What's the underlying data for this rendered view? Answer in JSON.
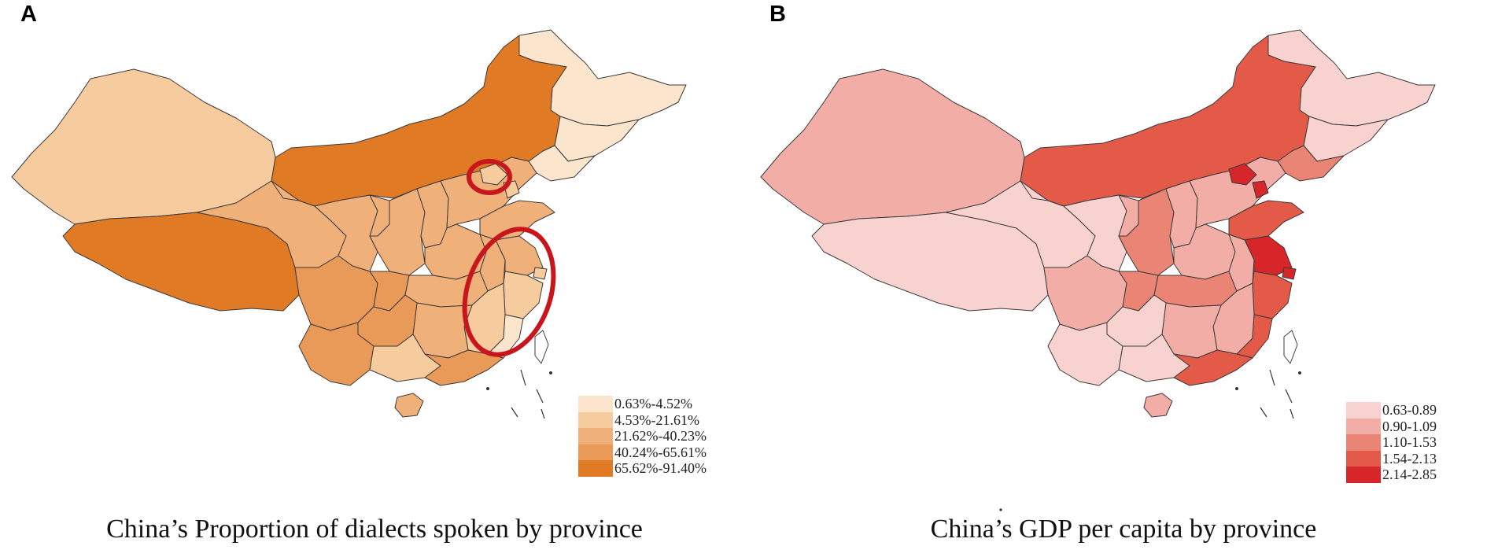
{
  "panels": [
    {
      "letter": "A",
      "caption": "China’s Proportion of dialects spoken by province",
      "legend": [
        {
          "label": "0.63%-4.52%",
          "color": "#fbe5cd"
        },
        {
          "label": "4.53%-21.61%",
          "color": "#f6cb9e"
        },
        {
          "label": "21.62%-40.23%",
          "color": "#f0b07a"
        },
        {
          "label": "40.24%-65.61%",
          "color": "#e99a58"
        },
        {
          "label": "65.62%-91.40%",
          "color": "#e07a24"
        }
      ],
      "highlight_regions": [
        "Beijing",
        "Zhejiang / Fujian coast"
      ]
    },
    {
      "letter": "B",
      "caption": "China’s GDP per capita by province",
      "legend": [
        {
          "label": "0.63-0.89",
          "color": "#f8d2cf"
        },
        {
          "label": "0.90-1.09",
          "color": "#f2aea6"
        },
        {
          "label": "1.10-1.53",
          "color": "#ea8474"
        },
        {
          "label": "1.54-2.13",
          "color": "#e35a48"
        },
        {
          "label": "2.14-2.85",
          "color": "#d7262a"
        }
      ]
    }
  ],
  "map_a_fills": {
    "heilongjiang": "#fbe5cd",
    "jilin": "#fbe5cd",
    "liaoning": "#fbe5cd",
    "inner_mongolia": "#e07a24",
    "xinjiang": "#f6cb9e",
    "tibet": "#e07a24",
    "qinghai": "#f0b07a",
    "gansu": "#f0b07a",
    "ningxia": "#f0b07a",
    "shaanxi": "#f0b07a",
    "shanxi": "#f0b07a",
    "hebei": "#f0b07a",
    "beijing": "#f6cb9e",
    "tianjin": "#f6cb9e",
    "shandong": "#f0b07a",
    "henan": "#f0b07a",
    "sichuan": "#e99a58",
    "chongqing": "#e99a58",
    "hubei": "#f0b07a",
    "anhui": "#f0b07a",
    "jiangsu": "#f0b07a",
    "shanghai": "#f6cb9e",
    "zhejiang": "#f6cb9e",
    "jiangxi": "#f6cb9e",
    "hunan": "#f0b07a",
    "guizhou": "#e99a58",
    "yunnan": "#e99a58",
    "guangxi": "#f6cb9e",
    "guangdong": "#e99a58",
    "fujian": "#fbe5cd",
    "hainan": "#f0b07a",
    "taiwan": "#ffffff"
  },
  "map_b_fills": {
    "heilongjiang": "#f8d2cf",
    "jilin": "#f8d2cf",
    "liaoning": "#ea8474",
    "inner_mongolia": "#e35a48",
    "xinjiang": "#f2aea6",
    "tibet": "#f8d2cf",
    "qinghai": "#f8d2cf",
    "gansu": "#f8d2cf",
    "ningxia": "#f2aea6",
    "shaanxi": "#ea8474",
    "shanxi": "#f2aea6",
    "hebei": "#f2aea6",
    "beijing": "#d7262a",
    "tianjin": "#d7262a",
    "shandong": "#e35a48",
    "henan": "#f2aea6",
    "sichuan": "#f2aea6",
    "chongqing": "#ea8474",
    "hubei": "#ea8474",
    "anhui": "#f2aea6",
    "jiangsu": "#d7262a",
    "shanghai": "#d7262a",
    "zhejiang": "#e35a48",
    "jiangxi": "#f2aea6",
    "hunan": "#f2aea6",
    "guizhou": "#f8d2cf",
    "yunnan": "#f8d2cf",
    "guangxi": "#f8d2cf",
    "guangdong": "#e35a48",
    "fujian": "#e35a48",
    "hainan": "#f2aea6",
    "taiwan": "#ffffff"
  }
}
